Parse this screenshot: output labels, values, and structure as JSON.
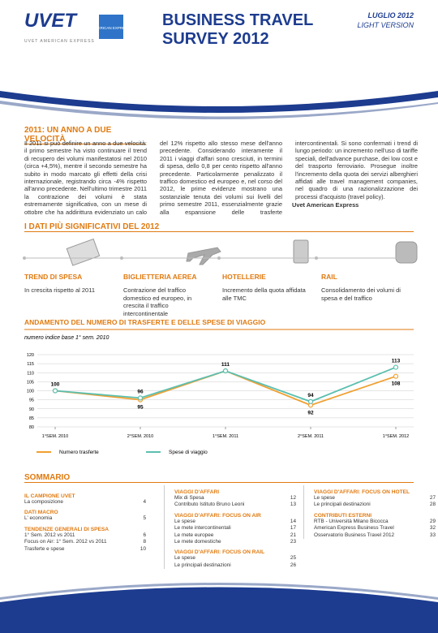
{
  "header": {
    "logo": "UVET",
    "logo_tagline": "UVET AMERICAN EXPRESS",
    "amex_logo": "AMERICAN EXPRESS",
    "title_line1": "BUSINESS TRAVEL",
    "title_line2": "SURVEY 2012",
    "date": "LUGLIO 2012",
    "version": "LIGHT VERSION"
  },
  "intro": {
    "title": "2011: UN ANNO A DUE VELOCITÀ",
    "text": "Il 2011 si può definire un anno a due velocità: il primo semestre ha visto continuare il trend di recupero dei volumi manifestatosi nel 2010 (circa +4,5%), mentre il secondo semestre ha subito in modo marcato gli effetti della crisi internazionale, registrando circa -4% rispetto all'anno precedente. Nell'ultimo trimestre 2011 la contrazione dei volumi è stata estremamente significativa, con un mese di ottobre che ha addirittura evidenziato un calo del 12% rispetto allo stesso mese dell'anno precedente. Considerando interamente il 2011 i viaggi d'affari sono cresciuti, in termini di spesa, dello 0,8 per cento rispetto all'anno precedente. Particolarmente penalizzato il traffico domestico ed europeo e, nel corso del 2012, le prime evidenze mostrano una sostanziale tenuta dei volumi sui livelli del primo semestre 2011, essenzialmente grazie alla espansione delle trasferte intercontinentali. Si sono confermati i trend di lungo periodo: un incremento nell'uso di tariffe speciali, dell'advance purchase, dei low cost e del trasporto ferroviario. Prosegue inoltre l'incremento della quota dei servizi alberghieri affidati alle travel management companies, nel quadro di una razionalizzazione dei processi d'acquisto (travel policy).",
    "signature": "Uvet American Express"
  },
  "highlights": {
    "title": "I DATI PIÙ SIGNIFICATIVI DEL 2012",
    "items": [
      {
        "title": "TREND DI SPESA",
        "text": "In crescita rispetto al 2011"
      },
      {
        "title": "BIGLIETTERIA AEREA",
        "text": "Contrazione del traffico domestico ed europeo, in crescita il traffico intercontinentale"
      },
      {
        "title": "HOTELLERIE",
        "text": "Incremento della quota affidata alle TMC"
      },
      {
        "title": "RAIL",
        "text": "Consolidamento dei volumi di spesa e del traffico"
      }
    ]
  },
  "chart_data": {
    "type": "line",
    "title": "ANDAMENTO DEL NUMERO DI TRASFERTE E DELLE SPESE DI VIAGGIO",
    "subtitle": "numero indice base 1° sem. 2010",
    "categories": [
      "1°SEM. 2010",
      "2°SEM. 2010",
      "1°SEM. 2011",
      "2°SEM. 2011",
      "1°SEM. 2012"
    ],
    "series": [
      {
        "name": "Numero trasferte",
        "color": "#f0a030",
        "values": [
          100,
          95,
          111,
          92,
          108
        ]
      },
      {
        "name": "Spese di viaggio",
        "color": "#5cbfb0",
        "values": [
          100,
          96,
          111,
          94,
          113
        ]
      }
    ],
    "ylim": [
      80,
      120
    ],
    "yticks": [
      80,
      85,
      90,
      95,
      100,
      105,
      110,
      115,
      120
    ],
    "grid": true
  },
  "sommario": {
    "title": "SOMMARIO",
    "columns": [
      [
        {
          "heading": "IL CAMPIONE UVET",
          "items": [
            {
              "label": "La composizione",
              "page": 4
            }
          ]
        },
        {
          "heading": "DATI MACRO",
          "items": [
            {
              "label": "L' economia",
              "page": 5
            }
          ]
        },
        {
          "heading": "TENDENZE GENERALI DI SPESA",
          "items": [
            {
              "label": "1° Sem. 2012 vs 2011",
              "page": 6
            },
            {
              "label": "Focus on Air: 1° Sem. 2012 vs 2011",
              "page": 8
            },
            {
              "label": "Trasferte e spese",
              "page": 10
            }
          ]
        }
      ],
      [
        {
          "heading": "VIAGGI D'AFFARI",
          "items": [
            {
              "label": "Mix di Spesa",
              "page": 12
            },
            {
              "label": "Contributo Istituto Bruno Leoni",
              "page": 13
            }
          ]
        },
        {
          "heading": "VIAGGI D'AFFARI: FOCUS ON AIR",
          "items": [
            {
              "label": "Le spese",
              "page": 14
            },
            {
              "label": "Le mete intercontinentali",
              "page": 17
            },
            {
              "label": "Le mete europee",
              "page": 21
            },
            {
              "label": "Le mete domestiche",
              "page": 23
            }
          ]
        },
        {
          "heading": "VIAGGI D'AFFARI: FOCUS ON RAIL",
          "items": [
            {
              "label": "Le spese",
              "page": 25
            },
            {
              "label": "Le principali destinazioni",
              "page": 26
            }
          ]
        }
      ],
      [
        {
          "heading": "VIAGGI D'AFFARI: FOCUS ON HOTEL",
          "items": [
            {
              "label": "Le spese",
              "page": 27
            },
            {
              "label": "Le principali destinazioni",
              "page": 28
            }
          ]
        },
        {
          "heading": "CONTRIBUTI ESTERNI",
          "items": [
            {
              "label": "RTB - Università Milano Bicocca",
              "page": 29
            },
            {
              "label": "American Express Business Travel",
              "page": 32
            },
            {
              "label": "Osservatorio Business Travel 2012",
              "page": 33
            }
          ]
        }
      ]
    ]
  }
}
